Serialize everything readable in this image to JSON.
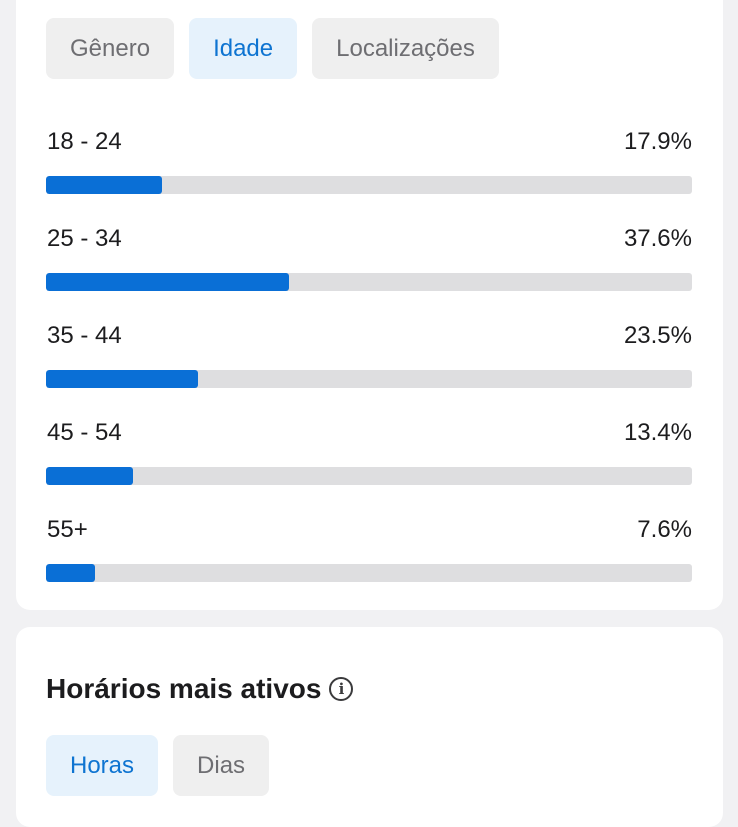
{
  "age_card": {
    "tabs": [
      {
        "label": "Gênero",
        "active": false
      },
      {
        "label": "Idade",
        "active": true
      },
      {
        "label": "Localizações",
        "active": false
      }
    ],
    "rows": [
      {
        "label": "18 - 24",
        "value": "17.9%",
        "percent": 17.9
      },
      {
        "label": "25 - 34",
        "value": "37.6%",
        "percent": 37.6
      },
      {
        "label": "35 - 44",
        "value": "23.5%",
        "percent": 23.5
      },
      {
        "label": "45 - 54",
        "value": "13.4%",
        "percent": 13.4
      },
      {
        "label": "55+",
        "value": "7.6%",
        "percent": 7.6
      }
    ]
  },
  "active_card": {
    "title": "Horários mais ativos",
    "info_icon": "info-icon",
    "tabs": [
      {
        "label": "Horas",
        "active": true
      },
      {
        "label": "Dias",
        "active": false
      }
    ]
  },
  "colors": {
    "accent": "#0a6fd6",
    "active_tab_bg": "#e6f2fc",
    "track": "#dedee0"
  }
}
